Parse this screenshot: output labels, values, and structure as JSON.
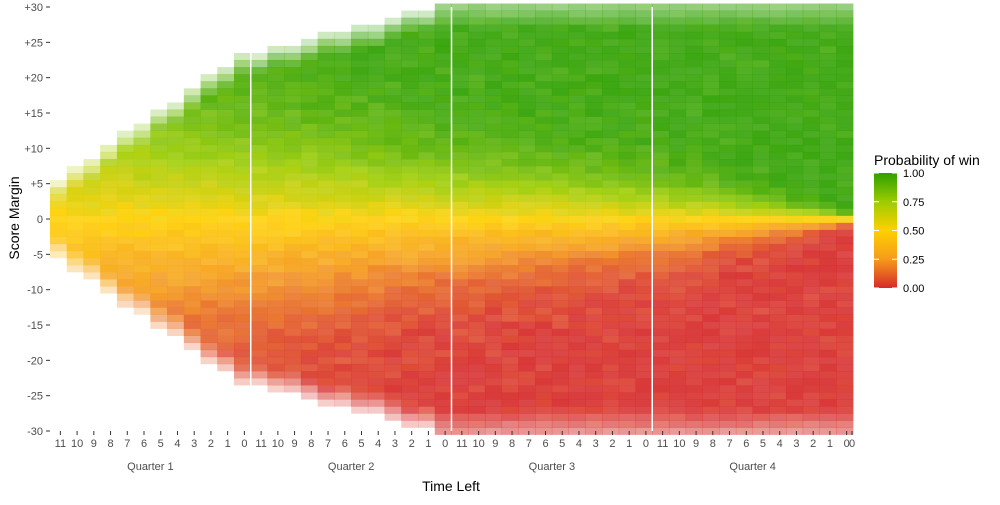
{
  "chart_data": {
    "type": "heatmap",
    "title": "",
    "xlabel": "Time Left",
    "ylabel": "Score Margin",
    "quarters": [
      "Quarter 1",
      "Quarter 2",
      "Quarter 3",
      "Quarter 4"
    ],
    "minute_ticks": [
      "11",
      "10",
      "9",
      "8",
      "7",
      "6",
      "5",
      "4",
      "3",
      "2",
      "1",
      "0"
    ],
    "y_ticks": [
      "+30",
      "+25",
      "+20",
      "+15",
      "+10",
      "+5",
      "0",
      "-5",
      "-10",
      "-15",
      "-20",
      "-25",
      "-30"
    ],
    "y_tick_values": [
      30,
      25,
      20,
      15,
      10,
      5,
      0,
      -5,
      -10,
      -15,
      -20,
      -25,
      -30
    ],
    "ylim": [
      -30,
      30
    ],
    "x_minutes_per_quarter": 12,
    "score_margin_step": 1,
    "fill_variable": "Probability of win",
    "color_scale": {
      "low": "#d62a2a",
      "mid_low": "#f59b1a",
      "mid": "#ffd000",
      "mid_high": "#9ccc00",
      "high": "#2ea000",
      "limits": [
        0,
        1
      ]
    },
    "score_margin_range_start_of_quarter": [
      5,
      23,
      30,
      30
    ],
    "score_margin_range_end_of_quarter": [
      23,
      30,
      30,
      30
    ],
    "probability_gradient_width_start_of_quarter": [
      30,
      22,
      14,
      9
    ],
    "grid": false,
    "legend": {
      "title": "Probability of win",
      "position": "right",
      "tick_values": [
        1.0,
        0.75,
        0.5,
        0.25,
        0.0
      ],
      "tick_labels": [
        "1.00",
        "0.75",
        "0.50",
        "0.25",
        "0.00"
      ]
    }
  }
}
